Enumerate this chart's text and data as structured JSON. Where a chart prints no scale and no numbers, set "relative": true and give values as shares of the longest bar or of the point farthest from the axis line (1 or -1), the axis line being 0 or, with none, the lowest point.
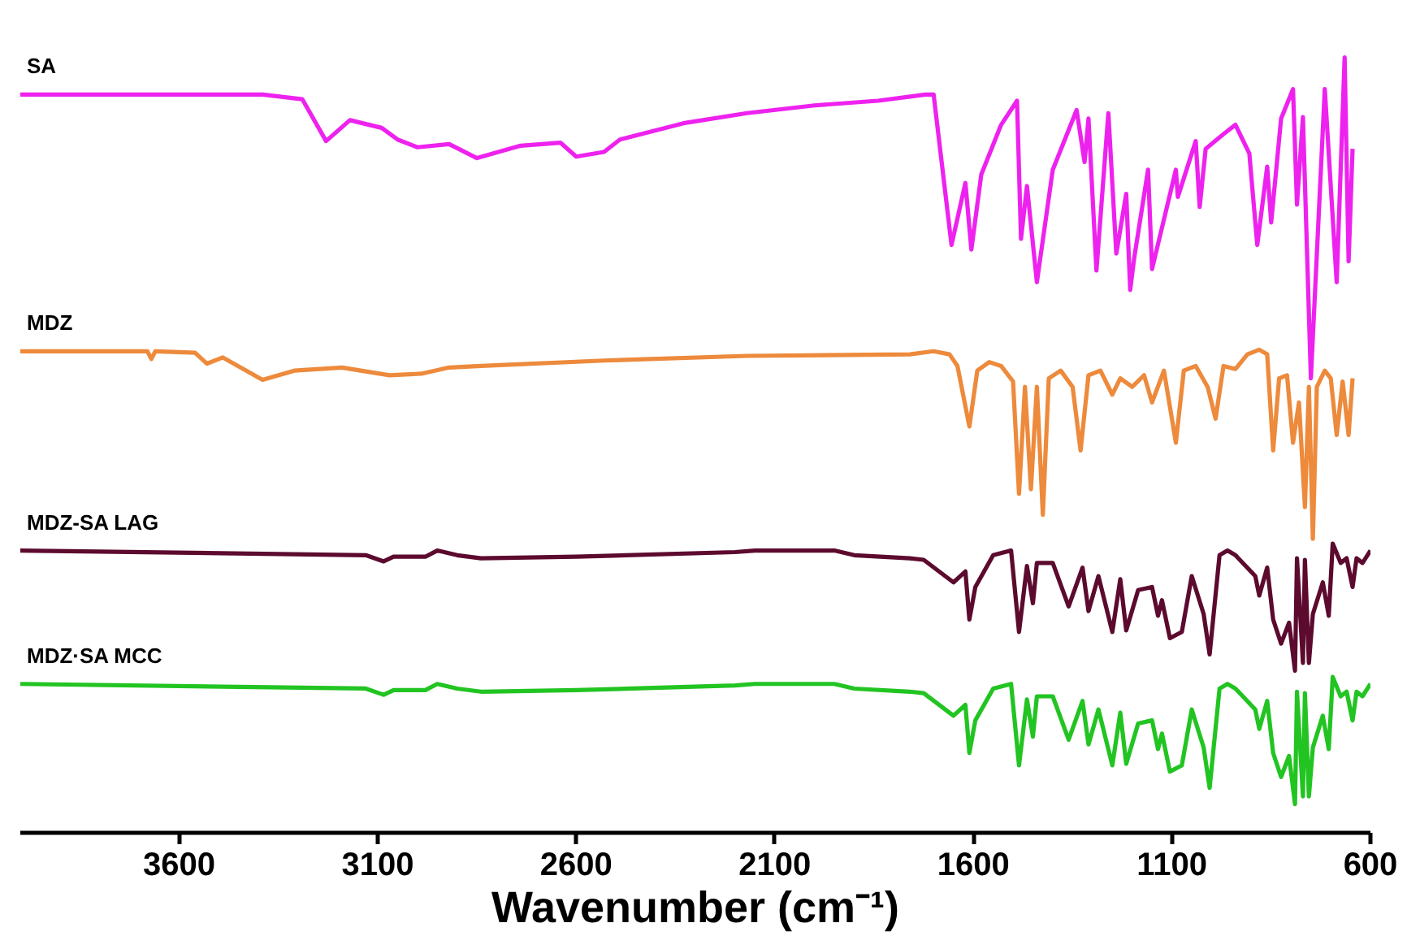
{
  "chart_data": {
    "type": "line",
    "relative": true,
    "xlabel": "Wavenumber (cm⁻¹)",
    "xlim": [
      4000,
      600
    ],
    "xticks": [
      3600,
      3100,
      2600,
      2100,
      1600,
      1100,
      600
    ],
    "series": [
      {
        "name": "SA",
        "color": "#ee22ee",
        "x": [
          4000,
          3390,
          3290,
          3230,
          3170,
          3090,
          3050,
          3000,
          2920,
          2850,
          2740,
          2640,
          2600,
          2530,
          2490,
          2330,
          2170,
          2000,
          1840,
          1720,
          1700,
          1655,
          1620,
          1605,
          1580,
          1530,
          1490,
          1480,
          1465,
          1440,
          1400,
          1340,
          1320,
          1310,
          1290,
          1260,
          1240,
          1215,
          1205,
          1195,
          1160,
          1150,
          1090,
          1085,
          1040,
          1030,
          1015,
          970,
          940,
          905,
          885,
          860,
          850,
          825,
          795,
          785,
          770,
          750,
          715,
          685,
          665,
          655,
          645
        ],
        "values": [
          0.952,
          0.952,
          0.946,
          0.892,
          0.919,
          0.909,
          0.894,
          0.884,
          0.888,
          0.87,
          0.886,
          0.89,
          0.872,
          0.878,
          0.894,
          0.915,
          0.928,
          0.938,
          0.944,
          0.952,
          0.952,
          0.758,
          0.838,
          0.752,
          0.849,
          0.913,
          0.944,
          0.766,
          0.834,
          0.71,
          0.855,
          0.932,
          0.865,
          0.921,
          0.725,
          0.928,
          0.747,
          0.824,
          0.7,
          0.741,
          0.855,
          0.727,
          0.855,
          0.82,
          0.892,
          0.807,
          0.882,
          0.901,
          0.913,
          0.876,
          0.758,
          0.859,
          0.787,
          0.921,
          0.959,
          0.81,
          0.923,
          0.586,
          0.959,
          0.71,
          1.0,
          0.737,
          0.882
        ]
      },
      {
        "name": "MDZ",
        "color": "#ed8a3c",
        "x": [
          4000,
          3680,
          3670,
          3660,
          3560,
          3530,
          3490,
          3390,
          3310,
          3190,
          3070,
          2990,
          2920,
          2840,
          2530,
          2170,
          1760,
          1700,
          1660,
          1640,
          1610,
          1590,
          1560,
          1530,
          1500,
          1485,
          1470,
          1455,
          1440,
          1425,
          1410,
          1380,
          1350,
          1330,
          1310,
          1280,
          1250,
          1230,
          1200,
          1170,
          1150,
          1120,
          1090,
          1070,
          1040,
          1010,
          990,
          970,
          940,
          910,
          880,
          860,
          845,
          830,
          810,
          795,
          780,
          765,
          755,
          745,
          735,
          715,
          700,
          685,
          670,
          655,
          645
        ],
        "values": [
          0.621,
          0.621,
          0.611,
          0.621,
          0.619,
          0.605,
          0.613,
          0.584,
          0.596,
          0.6,
          0.59,
          0.592,
          0.6,
          0.602,
          0.609,
          0.615,
          0.617,
          0.621,
          0.617,
          0.602,
          0.524,
          0.596,
          0.607,
          0.602,
          0.582,
          0.437,
          0.575,
          0.443,
          0.575,
          0.41,
          0.586,
          0.596,
          0.575,
          0.493,
          0.59,
          0.596,
          0.565,
          0.586,
          0.575,
          0.59,
          0.555,
          0.596,
          0.503,
          0.596,
          0.602,
          0.575,
          0.534,
          0.602,
          0.598,
          0.617,
          0.623,
          0.617,
          0.493,
          0.586,
          0.59,
          0.503,
          0.555,
          0.42,
          0.575,
          0.379,
          0.575,
          0.596,
          0.586,
          0.513,
          0.582,
          0.513,
          0.586
        ]
      },
      {
        "name": "MDZ-SA LAG",
        "color": "#5c0a2e",
        "x": [
          4000,
          3130,
          3085,
          3060,
          2980,
          2950,
          2900,
          2840,
          2600,
          2200,
          2150,
          1950,
          1900,
          1760,
          1725,
          1650,
          1620,
          1610,
          1595,
          1550,
          1505,
          1485,
          1465,
          1450,
          1440,
          1400,
          1360,
          1325,
          1310,
          1285,
          1250,
          1230,
          1215,
          1185,
          1150,
          1135,
          1125,
          1105,
          1075,
          1050,
          1020,
          1005,
          980,
          960,
          940,
          890,
          880,
          860,
          845,
          825,
          805,
          790,
          785,
          770,
          765,
          755,
          745,
          720,
          705,
          695,
          675,
          660,
          645,
          635,
          620,
          600
        ],
        "values": [
          0.364,
          0.358,
          0.35,
          0.356,
          0.356,
          0.364,
          0.358,
          0.354,
          0.356,
          0.362,
          0.364,
          0.364,
          0.358,
          0.354,
          0.352,
          0.323,
          0.337,
          0.275,
          0.317,
          0.358,
          0.364,
          0.259,
          0.344,
          0.296,
          0.348,
          0.348,
          0.292,
          0.342,
          0.286,
          0.331,
          0.259,
          0.327,
          0.261,
          0.313,
          0.317,
          0.28,
          0.3,
          0.251,
          0.259,
          0.331,
          0.282,
          0.23,
          0.358,
          0.364,
          0.358,
          0.331,
          0.306,
          0.342,
          0.275,
          0.244,
          0.271,
          0.209,
          0.354,
          0.219,
          0.352,
          0.219,
          0.282,
          0.323,
          0.28,
          0.373,
          0.348,
          0.354,
          0.317,
          0.354,
          0.348,
          0.364
        ]
      },
      {
        "name": "MDZ·SA MCC",
        "color": "#22c422",
        "x": [
          4000,
          3130,
          3085,
          3060,
          2980,
          2950,
          2900,
          2840,
          2600,
          2200,
          2150,
          1950,
          1900,
          1760,
          1725,
          1650,
          1620,
          1610,
          1595,
          1550,
          1505,
          1485,
          1465,
          1450,
          1440,
          1400,
          1360,
          1325,
          1310,
          1285,
          1250,
          1230,
          1215,
          1185,
          1150,
          1135,
          1125,
          1105,
          1075,
          1050,
          1020,
          1005,
          980,
          960,
          940,
          890,
          880,
          860,
          845,
          825,
          805,
          790,
          785,
          770,
          765,
          755,
          745,
          720,
          705,
          695,
          675,
          660,
          645,
          635,
          620,
          600
        ],
        "values": [
          0.192,
          0.186,
          0.178,
          0.184,
          0.184,
          0.192,
          0.186,
          0.182,
          0.184,
          0.19,
          0.192,
          0.192,
          0.186,
          0.182,
          0.18,
          0.151,
          0.165,
          0.103,
          0.145,
          0.186,
          0.192,
          0.087,
          0.172,
          0.124,
          0.176,
          0.176,
          0.12,
          0.17,
          0.114,
          0.159,
          0.087,
          0.155,
          0.089,
          0.141,
          0.145,
          0.108,
          0.128,
          0.079,
          0.087,
          0.159,
          0.11,
          0.058,
          0.186,
          0.192,
          0.186,
          0.159,
          0.134,
          0.17,
          0.103,
          0.072,
          0.099,
          0.037,
          0.182,
          0.047,
          0.18,
          0.047,
          0.11,
          0.151,
          0.108,
          0.201,
          0.176,
          0.182,
          0.145,
          0.182,
          0.176,
          0.192
        ]
      }
    ]
  }
}
